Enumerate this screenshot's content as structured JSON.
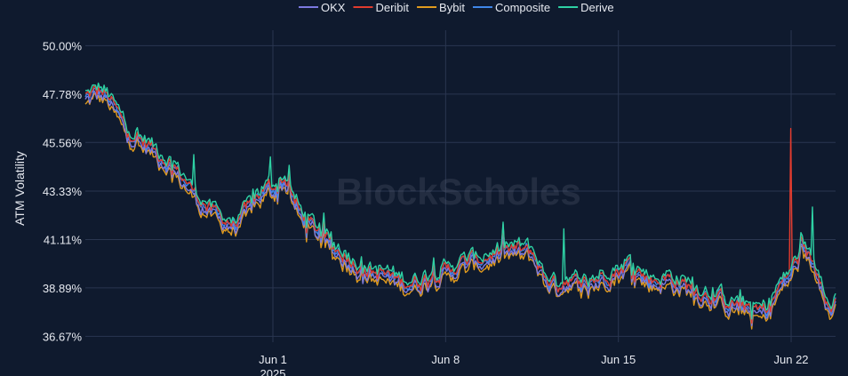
{
  "chart_data": {
    "type": "line",
    "ylabel": "ATM Volatility",
    "y_ticks": [
      "50.00%",
      "47.78%",
      "45.56%",
      "43.33%",
      "41.11%",
      "38.89%",
      "36.67%"
    ],
    "y_tick_values": [
      50.0,
      47.78,
      45.56,
      43.33,
      41.11,
      38.89,
      36.67
    ],
    "ylim": [
      36.4,
      50.3
    ],
    "x_ticks": [
      {
        "label": "Jun 1",
        "sub": "2025",
        "day": 1
      },
      {
        "label": "Jun 8",
        "sub": "",
        "day": 8
      },
      {
        "label": "Jun 15",
        "sub": "",
        "day": 15
      },
      {
        "label": "Jun 22",
        "sub": "",
        "day": 22
      }
    ],
    "xlim": [
      -6.6,
      23.8
    ],
    "grid": true,
    "legend_position": "top-center",
    "watermark": "BlockScholes",
    "base_curve": {
      "x": [
        -6.6,
        -6.0,
        -5.6,
        -5.0,
        -4.5,
        -4.0,
        -3.5,
        -3.0,
        -2.5,
        -2.0,
        -1.5,
        -1.0,
        -0.5,
        0.0,
        0.3,
        0.6,
        1.0,
        1.5,
        2.0,
        2.5,
        3.0,
        3.5,
        4.0,
        4.5,
        5.0,
        5.5,
        6.0,
        6.5,
        7.0,
        7.5,
        8.0,
        8.5,
        9.0,
        9.5,
        10.0,
        10.5,
        11.0,
        11.5,
        12.0,
        12.5,
        13.0,
        13.5,
        14.0,
        14.5,
        15.0,
        15.5,
        16.0,
        16.5,
        17.0,
        17.5,
        18.0,
        18.5,
        19.0,
        19.5,
        20.0,
        20.5,
        21.0,
        21.5,
        22.0,
        22.5,
        23.0,
        23.3,
        23.6,
        23.8
      ],
      "y": [
        47.6,
        47.9,
        47.5,
        46.3,
        45.7,
        45.4,
        44.9,
        44.4,
        43.7,
        43.0,
        42.4,
        42.0,
        41.8,
        42.4,
        43.0,
        43.3,
        43.5,
        43.9,
        42.5,
        41.8,
        41.3,
        40.7,
        40.3,
        39.9,
        39.6,
        39.5,
        39.3,
        39.1,
        39.2,
        39.5,
        39.6,
        39.9,
        40.1,
        40.2,
        40.4,
        40.6,
        40.6,
        40.5,
        39.4,
        39.0,
        39.3,
        39.0,
        39.2,
        39.5,
        39.7,
        40.0,
        39.4,
        39.2,
        39.3,
        39.1,
        38.9,
        38.6,
        38.5,
        38.2,
        38.1,
        37.8,
        37.8,
        38.9,
        39.6,
        40.7,
        39.8,
        39.2,
        37.6,
        38.4
      ]
    },
    "series": [
      {
        "name": "OKX",
        "color": "#7b79e0",
        "offset": -0.18
      },
      {
        "name": "Deribit",
        "color": "#e03b2e",
        "offset": 0.05
      },
      {
        "name": "Bybit",
        "color": "#e09a1e",
        "offset": -0.32
      },
      {
        "name": "Composite",
        "color": "#3f86e8",
        "offset": 0.0
      },
      {
        "name": "Derive",
        "color": "#2ed1a4",
        "offset": 0.22
      }
    ],
    "spikes": [
      {
        "series": "Deribit",
        "x": 22.0,
        "y": 46.2
      },
      {
        "series": "Derive",
        "x": 22.85,
        "y": 42.6
      },
      {
        "series": "Derive",
        "x": 12.8,
        "y": 41.6
      },
      {
        "series": "Derive",
        "x": -2.2,
        "y": 45.0
      },
      {
        "series": "Derive",
        "x": 0.9,
        "y": 44.9
      }
    ]
  }
}
